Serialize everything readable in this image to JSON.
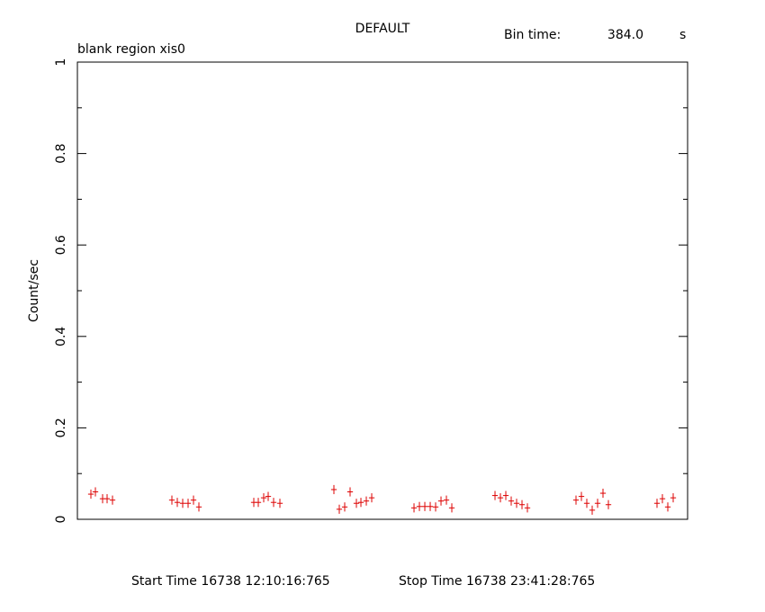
{
  "chart_data": {
    "type": "scatter",
    "title": "DEFAULT",
    "subtitle": "blank region xis0",
    "bin_time_label": "Bin time:",
    "bin_time": {
      "value": 384,
      "label": "384.0"
    },
    "bin_time_unit": "s",
    "y_label": "Count/sec",
    "start_time": "Start Time 16738 12:10:16:765",
    "stop_time": "Stop Time 16738 23:41:28:765",
    "xlim": [
      0,
      41472
    ],
    "ylim": [
      0,
      1
    ],
    "yticks": [
      0,
      0.2,
      0.4,
      0.6,
      0.8,
      1
    ],
    "series": [
      {
        "color": "#dd0000",
        "x": [
          918,
          1223,
          1713,
          2019,
          2386,
          6423,
          6790,
          7157,
          7524,
          7891,
          8258,
          11989,
          12295,
          12662,
          12968,
          13335,
          13763,
          17433,
          17800,
          18167,
          18534,
          18963,
          19269,
          19636,
          20003,
          22878,
          23245,
          23612,
          23979,
          24346,
          24713,
          25080,
          25447,
          28383,
          28750,
          29117,
          29484,
          29851,
          30218,
          30585,
          33888,
          34255,
          34622,
          34989,
          35356,
          35723,
          36090,
          39393,
          39760,
          40127,
          40494
        ],
        "values": [
          0.055,
          0.06,
          0.045,
          0.045,
          0.042,
          0.042,
          0.037,
          0.035,
          0.035,
          0.042,
          0.027,
          0.037,
          0.037,
          0.047,
          0.05,
          0.037,
          0.035,
          0.065,
          0.022,
          0.027,
          0.06,
          0.035,
          0.037,
          0.04,
          0.047,
          0.025,
          0.028,
          0.028,
          0.028,
          0.027,
          0.04,
          0.042,
          0.025,
          0.052,
          0.047,
          0.052,
          0.04,
          0.035,
          0.032,
          0.025,
          0.042,
          0.05,
          0.035,
          0.02,
          0.035,
          0.057,
          0.032,
          0.035,
          0.045,
          0.027,
          0.047
        ],
        "errors": [
          0.01,
          0.01,
          0.01,
          0.01,
          0.01,
          0.01,
          0.01,
          0.01,
          0.01,
          0.01,
          0.01,
          0.01,
          0.01,
          0.01,
          0.01,
          0.01,
          0.01,
          0.01,
          0.01,
          0.01,
          0.01,
          0.01,
          0.01,
          0.01,
          0.01,
          0.01,
          0.01,
          0.01,
          0.01,
          0.01,
          0.01,
          0.01,
          0.01,
          0.01,
          0.01,
          0.01,
          0.01,
          0.01,
          0.01,
          0.01,
          0.01,
          0.01,
          0.01,
          0.01,
          0.01,
          0.01,
          0.01,
          0.01,
          0.01,
          0.01,
          0.01
        ]
      }
    ]
  }
}
